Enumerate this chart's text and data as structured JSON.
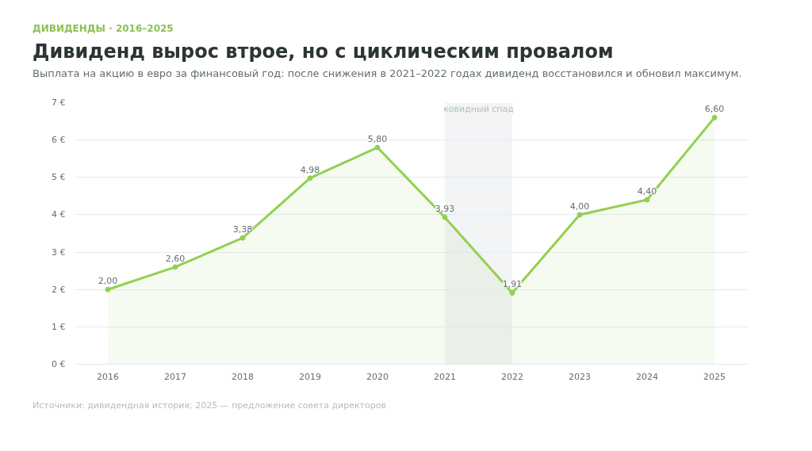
{
  "chart_data": {
    "type": "area",
    "title": "Дивиденд вырос втрое, но с циклическим провалом",
    "subtitle": "Выплата на акцию в евро за финансовый год: после снижения в 2021–2022 годах дивиденд восстановился и обновил максимум.",
    "annotations": [
      "ДИВИДЕНДЫ · 2016–2025",
      "Источники: дивидендная история; 2025 — предложение совета директоров"
    ],
    "x": [
      2016,
      2017,
      2018,
      2019,
      2020,
      2021,
      2022,
      2023,
      2024,
      2025
    ],
    "series": [
      {
        "color": "#92d050",
        "values": [
          2.0,
          2.6,
          3.38,
          4.98,
          5.8,
          3.93,
          1.91,
          4.0,
          4.4,
          6.6
        ],
        "value_labels": [
          "2,00",
          "2,60",
          "3,38",
          "4,98",
          "5,80",
          "3,93",
          "1,91",
          "4,00",
          "4,40",
          "6,60"
        ]
      }
    ],
    "xlim": [
      2015.5,
      2025.5
    ],
    "xticks": [
      2016,
      2017,
      2018,
      2019,
      2020,
      2021,
      2022,
      2023,
      2024,
      2025
    ],
    "ylim": [
      0,
      7
    ],
    "yticks": [
      {
        "value": 0,
        "label": "0 €"
      },
      {
        "value": 1,
        "label": "1 €"
      },
      {
        "value": 2,
        "label": "2 €"
      },
      {
        "value": 3,
        "label": "3 €"
      },
      {
        "value": 4,
        "label": "4 €"
      },
      {
        "value": 5,
        "label": "5 €"
      },
      {
        "value": 6,
        "label": "6 €"
      },
      {
        "value": 7,
        "label": "7 €"
      }
    ],
    "bands": [
      {
        "axis": "x",
        "from": 2021,
        "to": 2022,
        "label": "ковидный спад",
        "color": "#e9edf0"
      }
    ],
    "grid": "y",
    "marker": "circle",
    "line_style": "solid"
  }
}
